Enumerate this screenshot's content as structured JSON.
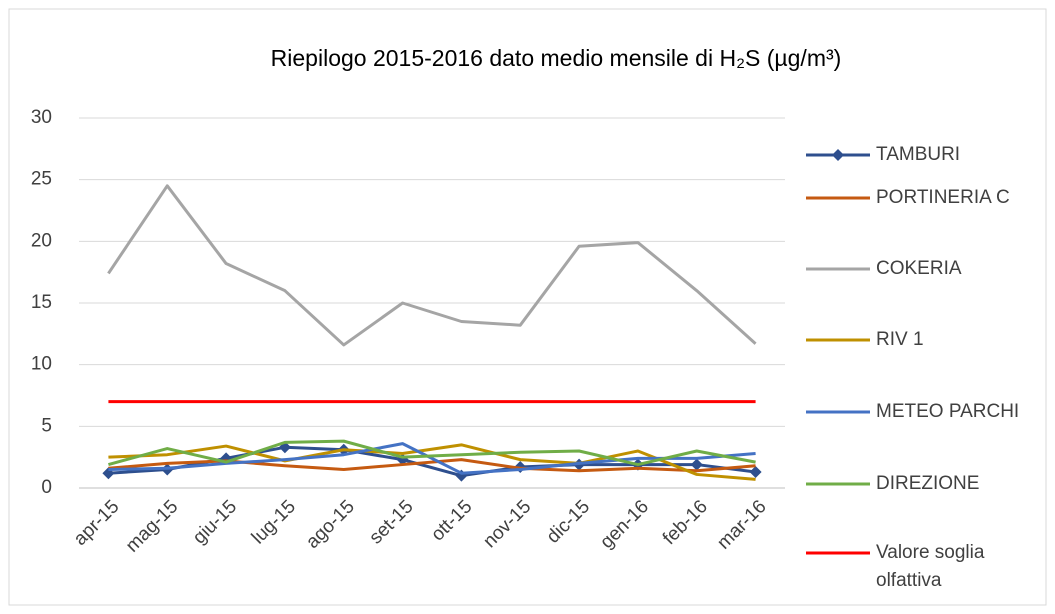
{
  "chart_data": {
    "type": "line",
    "title": "Riepilogo 2015-2016 dato medio mensile di H₂S (µg/m³)",
    "categories": [
      "apr-15",
      "mag-15",
      "giu-15",
      "lug-15",
      "ago-15",
      "set-15",
      "ott-15",
      "nov-15",
      "dic-15",
      "gen-16",
      "feb-16",
      "mar-16"
    ],
    "ylim": [
      0,
      30
    ],
    "yticks": [
      0,
      5,
      10,
      15,
      20,
      25,
      30
    ],
    "grid": true,
    "legend": "right",
    "series": [
      {
        "name": "TAMBURI",
        "color": "#2e4f8e",
        "marker": "diamond",
        "values": [
          1.2,
          1.5,
          2.4,
          3.3,
          3.1,
          2.3,
          1.0,
          1.7,
          1.9,
          1.9,
          1.9,
          1.3
        ]
      },
      {
        "name": "PORTINERIA C",
        "color": "#c55a11",
        "values": [
          1.6,
          2.0,
          2.2,
          1.8,
          1.5,
          1.9,
          2.3,
          1.6,
          1.4,
          1.6,
          1.4,
          1.8
        ]
      },
      {
        "name": "COKERIA",
        "color": "#a5a5a5",
        "values": [
          17.4,
          24.5,
          18.2,
          16.0,
          11.6,
          15.0,
          13.5,
          13.2,
          19.6,
          19.9,
          16.0,
          11.7
        ]
      },
      {
        "name": "RIV 1",
        "color": "#bf9000",
        "values": [
          2.5,
          2.7,
          3.4,
          2.2,
          3.1,
          2.8,
          3.5,
          2.3,
          2.0,
          3.0,
          1.1,
          0.7
        ]
      },
      {
        "name": "METEO PARCHI",
        "color": "#4472c4",
        "values": [
          1.5,
          1.6,
          2.0,
          2.3,
          2.7,
          3.6,
          1.2,
          1.5,
          2.0,
          2.4,
          2.4,
          2.8
        ]
      },
      {
        "name": "DIREZIONE",
        "color": "#70ad47",
        "values": [
          1.9,
          3.2,
          2.1,
          3.7,
          3.8,
          2.5,
          2.7,
          2.9,
          3.0,
          1.9,
          3.0,
          2.1
        ]
      },
      {
        "name": "Valore soglia olfattiva",
        "color": "#ff0000",
        "values": [
          7,
          7,
          7,
          7,
          7,
          7,
          7,
          7,
          7,
          7,
          7,
          7
        ]
      }
    ]
  }
}
